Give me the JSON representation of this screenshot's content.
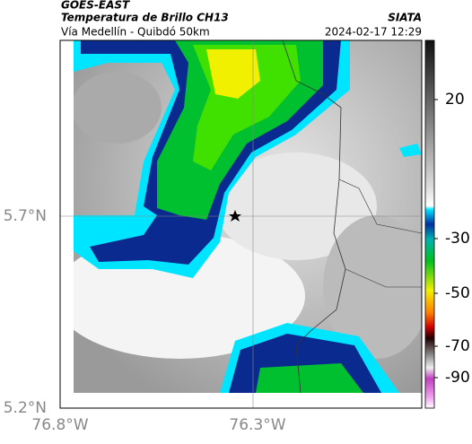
{
  "header": {
    "title": "GOES-EAST",
    "subtitle": "Temperatura de Brillo CH13",
    "route": "Vía Medellín - Quibdó 50km",
    "source": "SIATA",
    "timestamp": "2024-02-17 12:29"
  },
  "axes": {
    "lat_ticks": [
      "5.7°N",
      "5.2°N"
    ],
    "lon_ticks": [
      "76.8°W",
      "76.3°W"
    ]
  },
  "colorbar": {
    "ticks": [
      "20",
      "-30",
      "-50",
      "-70",
      "-90"
    ]
  }
}
